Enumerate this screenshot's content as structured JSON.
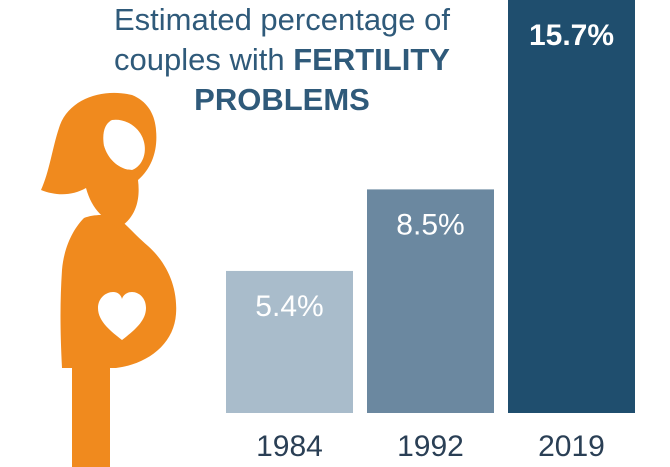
{
  "chart_data": {
    "type": "bar",
    "title_lines": [
      {
        "regular": "Estimated percentage of",
        "bold": ""
      },
      {
        "regular": "couples with ",
        "bold": "FERTILITY"
      },
      {
        "regular": "",
        "bold": "PROBLEMS"
      }
    ],
    "categories": [
      "1984",
      "1992",
      "2019"
    ],
    "values": [
      5.4,
      8.5,
      15.7
    ],
    "value_labels": [
      "5.4%",
      "8.5%",
      "15.7%"
    ],
    "bar_colors": [
      "#a9bccb",
      "#6b88a0",
      "#1f4e6e"
    ],
    "ylim": [
      0,
      15.7
    ],
    "xlabel": "",
    "ylabel": "",
    "grid": false,
    "legend": "none"
  },
  "illustration": {
    "icon": "pregnant-woman-icon",
    "color": "#f08a1e",
    "heart_color": "#ffffff"
  }
}
